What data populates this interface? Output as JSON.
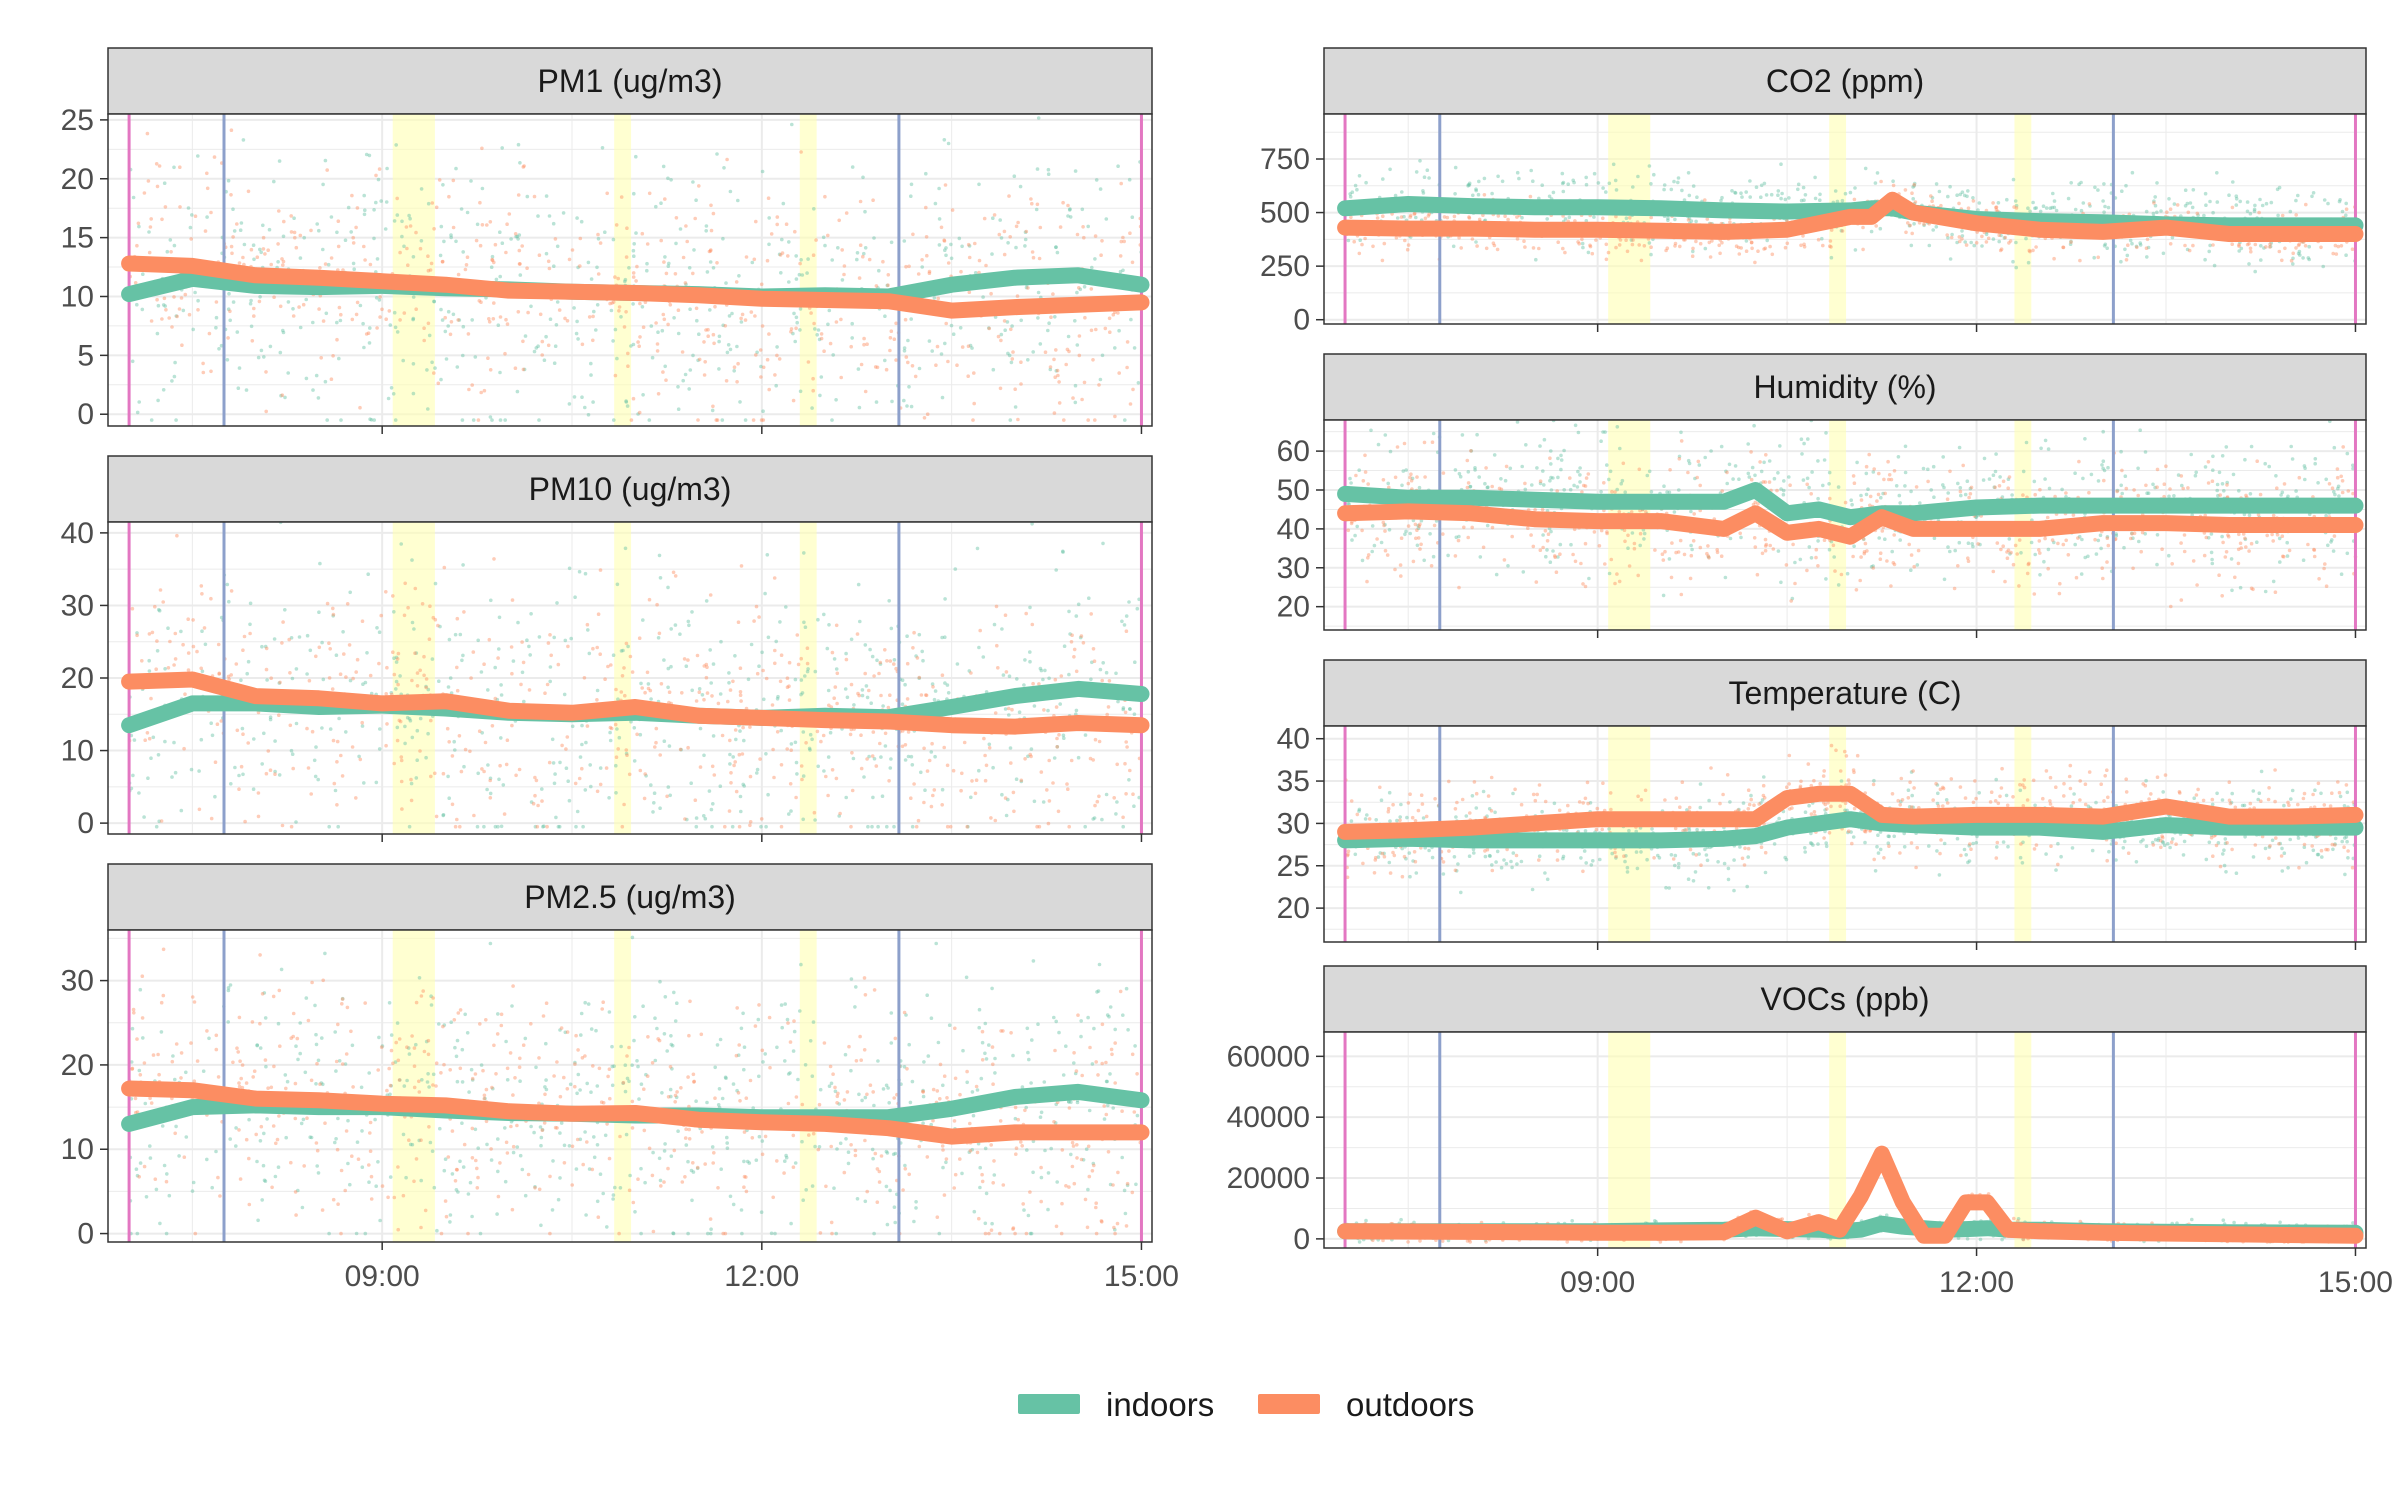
{
  "colors": {
    "indoors": "#66c2a5",
    "outdoors": "#fc8d62",
    "start_end_line": "#e377c2",
    "mid_line": "#8da0cb",
    "highlight_band": "#ffffb3",
    "strip_fill": "#d9d9d9"
  },
  "legend": {
    "items": [
      {
        "key": "indoors",
        "label": "indoors"
      },
      {
        "key": "outdoors",
        "label": "outdoors"
      }
    ]
  },
  "chart_data": [
    {
      "type": "line",
      "title": "PM1 (ug/m3)",
      "xlabel": "",
      "ylabel": "",
      "xlim": [
        "06:50",
        "15:05"
      ],
      "ylim": [
        -1,
        25.5
      ],
      "x_ticks": [
        "09:00",
        "12:00",
        "15:00"
      ],
      "y_ticks": [
        0,
        5,
        10,
        15,
        20,
        25
      ],
      "x": [
        "07:00",
        "07:30",
        "08:00",
        "08:30",
        "09:00",
        "09:30",
        "10:00",
        "10:30",
        "11:00",
        "11:30",
        "12:00",
        "12:30",
        "13:00",
        "13:30",
        "14:00",
        "14:30",
        "15:00"
      ],
      "series": [
        {
          "name": "indoors",
          "values": [
            10.2,
            11.5,
            10.9,
            10.8,
            10.9,
            10.7,
            10.6,
            10.4,
            10.3,
            10.2,
            10.0,
            10.1,
            10.0,
            11.0,
            11.6,
            11.8,
            11.0
          ]
        },
        {
          "name": "outdoors",
          "values": [
            12.8,
            12.6,
            11.8,
            11.6,
            11.3,
            11.0,
            10.5,
            10.4,
            10.3,
            10.1,
            9.8,
            9.7,
            9.6,
            8.8,
            9.1,
            9.3,
            9.5
          ]
        }
      ],
      "raw_spread": {
        "indoors": 6.0,
        "outdoors": 5.0
      },
      "vlines": {
        "start_end": [
          "07:00",
          "15:00"
        ],
        "mid": [
          "07:45",
          "13:05"
        ]
      },
      "highlight_bands": [
        [
          "09:05",
          "09:25"
        ],
        [
          "10:50",
          "10:58"
        ],
        [
          "12:18",
          "12:26"
        ]
      ],
      "grid": true,
      "legend": "bottom"
    },
    {
      "type": "line",
      "title": "PM10 (ug/m3)",
      "xlabel": "",
      "ylabel": "",
      "xlim": [
        "06:50",
        "15:05"
      ],
      "ylim": [
        -1.5,
        41.5
      ],
      "x_ticks": [
        "09:00",
        "12:00",
        "15:00"
      ],
      "y_ticks": [
        0,
        10,
        20,
        30,
        40
      ],
      "x": [
        "07:00",
        "07:30",
        "08:00",
        "08:30",
        "09:00",
        "09:30",
        "10:00",
        "10:30",
        "11:00",
        "11:30",
        "12:00",
        "12:30",
        "13:00",
        "13:30",
        "14:00",
        "14:30",
        "15:00"
      ],
      "series": [
        {
          "name": "indoors",
          "values": [
            13.5,
            16.5,
            16.5,
            16.0,
            16.2,
            15.8,
            15.2,
            15.0,
            15.2,
            14.8,
            14.5,
            14.8,
            14.6,
            16.0,
            17.5,
            18.5,
            17.8
          ]
        },
        {
          "name": "outdoors",
          "values": [
            19.5,
            19.8,
            17.5,
            17.2,
            16.5,
            16.8,
            15.5,
            15.2,
            16.0,
            14.8,
            14.5,
            14.2,
            14.0,
            13.5,
            13.3,
            13.8,
            13.5
          ]
        }
      ],
      "raw_spread": {
        "indoors": 9.0,
        "outdoors": 8.0
      },
      "vlines": {
        "start_end": [
          "07:00",
          "15:00"
        ],
        "mid": [
          "07:45",
          "13:05"
        ]
      },
      "highlight_bands": [
        [
          "09:05",
          "09:25"
        ],
        [
          "10:50",
          "10:58"
        ],
        [
          "12:18",
          "12:26"
        ]
      ],
      "grid": true,
      "legend": "bottom"
    },
    {
      "type": "line",
      "title": "PM2.5 (ug/m3)",
      "xlabel": "",
      "ylabel": "",
      "xlim": [
        "06:50",
        "15:05"
      ],
      "ylim": [
        -1,
        36
      ],
      "x_ticks": [
        "09:00",
        "12:00",
        "15:00"
      ],
      "y_ticks": [
        0,
        10,
        20,
        30
      ],
      "x": [
        "07:00",
        "07:30",
        "08:00",
        "08:30",
        "09:00",
        "09:30",
        "10:00",
        "10:30",
        "11:00",
        "11:30",
        "12:00",
        "12:30",
        "13:00",
        "13:30",
        "14:00",
        "14:30",
        "15:00"
      ],
      "series": [
        {
          "name": "indoors",
          "values": [
            13.0,
            15.0,
            15.2,
            15.0,
            15.0,
            14.6,
            14.3,
            14.2,
            14.0,
            14.0,
            13.8,
            13.8,
            13.8,
            14.8,
            16.2,
            16.8,
            15.8
          ]
        },
        {
          "name": "outdoors",
          "values": [
            17.2,
            17.0,
            16.0,
            15.8,
            15.4,
            15.2,
            14.5,
            14.2,
            14.3,
            13.5,
            13.2,
            13.0,
            12.5,
            11.5,
            12.0,
            12.0,
            12.0
          ]
        }
      ],
      "raw_spread": {
        "indoors": 8.0,
        "outdoors": 7.0
      },
      "vlines": {
        "start_end": [
          "07:00",
          "15:00"
        ],
        "mid": [
          "07:45",
          "13:05"
        ]
      },
      "highlight_bands": [
        [
          "09:05",
          "09:25"
        ],
        [
          "10:50",
          "10:58"
        ],
        [
          "12:18",
          "12:26"
        ]
      ],
      "grid": true,
      "legend": "bottom"
    },
    {
      "type": "line",
      "title": "CO2 (ppm)",
      "xlabel": "",
      "ylabel": "",
      "xlim": [
        "06:50",
        "15:05"
      ],
      "ylim": [
        -20,
        960
      ],
      "x_ticks": [
        "09:00",
        "12:00",
        "15:00"
      ],
      "y_ticks": [
        0,
        250,
        500,
        750
      ],
      "x": [
        "07:00",
        "07:30",
        "08:00",
        "08:30",
        "09:00",
        "09:30",
        "10:00",
        "10:30",
        "11:00",
        "11:10",
        "11:20",
        "11:30",
        "12:00",
        "12:30",
        "13:00",
        "13:30",
        "14:00",
        "14:30",
        "15:00"
      ],
      "series": [
        {
          "name": "indoors",
          "values": [
            520,
            540,
            530,
            525,
            525,
            520,
            510,
            505,
            510,
            520,
            520,
            500,
            470,
            460,
            455,
            445,
            440,
            440,
            440
          ]
        },
        {
          "name": "outdoors",
          "values": [
            430,
            425,
            425,
            420,
            420,
            415,
            410,
            420,
            480,
            480,
            560,
            500,
            450,
            420,
            410,
            430,
            400,
            400,
            400
          ]
        }
      ],
      "raw_spread": {
        "indoors": 90,
        "outdoors": 60
      },
      "vlines": {
        "start_end": [
          "07:00",
          "15:00"
        ],
        "mid": [
          "07:45",
          "13:05"
        ]
      },
      "highlight_bands": [
        [
          "09:05",
          "09:25"
        ],
        [
          "10:50",
          "10:58"
        ],
        [
          "12:18",
          "12:26"
        ]
      ],
      "grid": true,
      "legend": "bottom"
    },
    {
      "type": "line",
      "title": "Humidity (%)",
      "xlabel": "",
      "ylabel": "",
      "xlim": [
        "06:50",
        "15:05"
      ],
      "ylim": [
        14,
        68
      ],
      "x_ticks": [
        "09:00",
        "12:00",
        "15:00"
      ],
      "y_ticks": [
        20,
        30,
        40,
        50,
        60
      ],
      "x": [
        "07:00",
        "07:30",
        "08:00",
        "08:30",
        "09:00",
        "09:30",
        "10:00",
        "10:15",
        "10:30",
        "10:45",
        "11:00",
        "11:15",
        "11:30",
        "12:00",
        "12:30",
        "13:00",
        "13:30",
        "14:00",
        "14:30",
        "15:00"
      ],
      "series": [
        {
          "name": "indoors",
          "values": [
            49,
            48,
            48,
            47.5,
            47,
            47,
            47,
            50,
            44,
            45,
            43,
            44,
            44,
            45.5,
            46,
            46,
            46,
            46,
            46,
            46
          ]
        },
        {
          "name": "outdoors",
          "values": [
            44,
            44.5,
            44,
            42.5,
            42,
            42,
            40,
            44,
            39,
            40,
            38,
            43,
            40,
            40,
            40,
            41.5,
            41.5,
            41,
            41,
            41
          ]
        }
      ],
      "raw_spread": {
        "indoors": 9.0,
        "outdoors": 8.0
      },
      "vlines": {
        "start_end": [
          "07:00",
          "15:00"
        ],
        "mid": [
          "07:45",
          "13:05"
        ]
      },
      "highlight_bands": [
        [
          "09:05",
          "09:25"
        ],
        [
          "10:50",
          "10:58"
        ],
        [
          "12:18",
          "12:26"
        ]
      ],
      "grid": true,
      "legend": "bottom"
    },
    {
      "type": "line",
      "title": "Temperature (C)",
      "xlabel": "",
      "ylabel": "",
      "xlim": [
        "06:50",
        "15:05"
      ],
      "ylim": [
        16,
        41.5
      ],
      "x_ticks": [
        "09:00",
        "12:00",
        "15:00"
      ],
      "y_ticks": [
        20,
        25,
        30,
        35,
        40
      ],
      "x": [
        "07:00",
        "07:30",
        "08:00",
        "08:30",
        "09:00",
        "09:30",
        "10:00",
        "10:15",
        "10:30",
        "10:45",
        "11:00",
        "11:15",
        "11:30",
        "12:00",
        "12:30",
        "13:00",
        "13:30",
        "14:00",
        "14:30",
        "15:00"
      ],
      "series": [
        {
          "name": "indoors",
          "values": [
            28,
            28.2,
            28,
            28,
            28,
            28,
            28.2,
            28.5,
            29.5,
            30,
            30.5,
            30,
            29.8,
            29.5,
            29.5,
            29,
            29.8,
            29.5,
            29.5,
            29.5
          ]
        },
        {
          "name": "outdoors",
          "values": [
            29,
            29.2,
            29.5,
            30,
            30.5,
            30.5,
            30.5,
            30.5,
            33,
            33.5,
            33.5,
            31,
            30.8,
            31,
            31,
            30.8,
            32,
            30.8,
            30.8,
            31
          ]
        }
      ],
      "raw_spread": {
        "indoors": 2.5,
        "outdoors": 2.5
      },
      "vlines": {
        "start_end": [
          "07:00",
          "15:00"
        ],
        "mid": [
          "07:45",
          "13:05"
        ]
      },
      "highlight_bands": [
        [
          "09:05",
          "09:25"
        ],
        [
          "10:50",
          "10:58"
        ],
        [
          "12:18",
          "12:26"
        ]
      ],
      "grid": true,
      "legend": "bottom"
    },
    {
      "type": "line",
      "title": "VOCs (ppb)",
      "xlabel": "",
      "ylabel": "",
      "xlim": [
        "06:50",
        "15:05"
      ],
      "ylim": [
        -3000,
        68000
      ],
      "x_ticks": [
        "09:00",
        "12:00",
        "15:00"
      ],
      "y_ticks": [
        0,
        20000,
        40000,
        60000
      ],
      "x": [
        "07:00",
        "08:00",
        "09:00",
        "09:30",
        "10:00",
        "10:15",
        "10:30",
        "10:45",
        "10:55",
        "11:05",
        "11:15",
        "11:25",
        "11:35",
        "11:45",
        "11:55",
        "12:05",
        "12:15",
        "12:30",
        "13:00",
        "14:00",
        "15:00"
      ],
      "series": [
        {
          "name": "indoors",
          "values": [
            2500,
            2500,
            2500,
            2800,
            3000,
            3500,
            3200,
            3000,
            2500,
            3000,
            5000,
            4000,
            3500,
            3000,
            3200,
            3500,
            3000,
            3000,
            2500,
            2200,
            2000
          ]
        },
        {
          "name": "outdoors",
          "values": [
            2500,
            2300,
            2000,
            2000,
            2200,
            7000,
            2500,
            5500,
            3000,
            14000,
            28000,
            12000,
            1000,
            1000,
            12000,
            12000,
            3000,
            2500,
            2000,
            1500,
            1000
          ]
        }
      ],
      "raw_spread": {
        "indoors": 1500,
        "outdoors": 1500
      },
      "vlines": {
        "start_end": [
          "07:00",
          "15:00"
        ],
        "mid": [
          "07:45",
          "13:05"
        ]
      },
      "highlight_bands": [
        [
          "09:05",
          "09:25"
        ],
        [
          "10:50",
          "10:58"
        ],
        [
          "12:18",
          "12:26"
        ]
      ],
      "grid": true,
      "legend": "bottom"
    }
  ]
}
